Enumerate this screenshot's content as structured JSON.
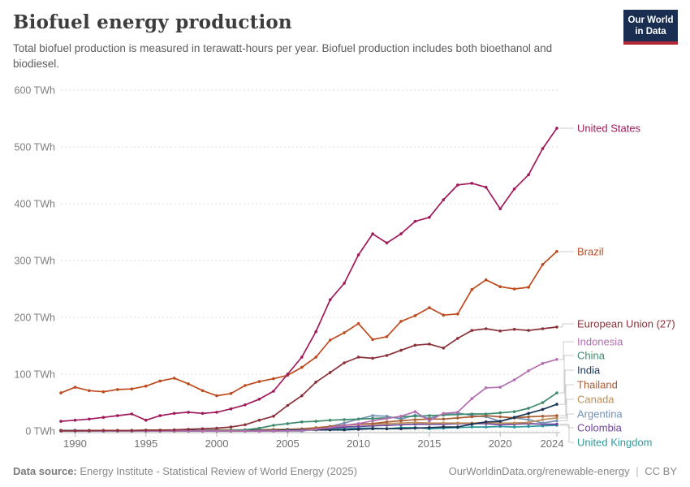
{
  "header": {
    "title": "Biofuel energy production",
    "subtitle": "Total biofuel production is measured in terawatt-hours per year. Biofuel production includes both bioethanol and biodiesel.",
    "logo": {
      "line1": "Our World",
      "line2": "in Data",
      "bg_color": "#1a2e51",
      "accent_color": "#b22735"
    }
  },
  "footer": {
    "datasource_label": "Data source:",
    "datasource": "Energy Institute - Statistical Review of World Energy (2025)",
    "link": "OurWorldinData.org/renewable-energy",
    "separator": "|",
    "license": "CC BY"
  },
  "chart_data": {
    "type": "line",
    "title": "Biofuel energy production",
    "unit": "TWh",
    "xlim": [
      1989,
      2024
    ],
    "ylim": [
      0,
      600
    ],
    "grid": "horizontal-dashed",
    "legend_position": "right-end-labels",
    "x": [
      1989,
      1990,
      1991,
      1992,
      1993,
      1994,
      1995,
      1996,
      1997,
      1998,
      1999,
      2000,
      2001,
      2002,
      2003,
      2004,
      2005,
      2006,
      2007,
      2008,
      2009,
      2010,
      2011,
      2012,
      2013,
      2014,
      2015,
      2016,
      2017,
      2018,
      2019,
      2020,
      2021,
      2022,
      2023,
      2024
    ],
    "x_ticks": [
      1990,
      1995,
      2000,
      2005,
      2010,
      2015,
      2020,
      2024
    ],
    "x_tick_labels": [
      "1990",
      "1995",
      "2000",
      "2005",
      "2010",
      "2015",
      "2020",
      "2024"
    ],
    "y_ticks": [
      0,
      100,
      200,
      300,
      400,
      500,
      600
    ],
    "y_tick_labels": [
      "0 TWh",
      "100 TWh",
      "200 TWh",
      "300 TWh",
      "400 TWh",
      "500 TWh",
      "600 TWh"
    ],
    "series": [
      {
        "name": "United States",
        "color": "#a0195b",
        "label_y": 68,
        "values": [
          17,
          19,
          21,
          24,
          27,
          30,
          19,
          27,
          31,
          33,
          31,
          33,
          39,
          46,
          56,
          70,
          100,
          130,
          175,
          231,
          260,
          310,
          347,
          331,
          347,
          369,
          376,
          407,
          433,
          436,
          429,
          391,
          426,
          451,
          497,
          533
        ]
      },
      {
        "name": "Brazil",
        "color": "#bd4a1f",
        "label_y": 220,
        "values": [
          67,
          77,
          71,
          69,
          73,
          74,
          79,
          88,
          93,
          83,
          71,
          62,
          66,
          80,
          87,
          92,
          98,
          112,
          130,
          160,
          173,
          189,
          161,
          166,
          193,
          203,
          217,
          204,
          206,
          249,
          266,
          254,
          250,
          253,
          293,
          316
        ]
      },
      {
        "name": "European Union (27)",
        "color": "#8a3039",
        "label_y": 309,
        "values": [
          0.5,
          0.5,
          0.7,
          1,
          1,
          1,
          1.5,
          1.5,
          2,
          3,
          4,
          5,
          7,
          11,
          19,
          26,
          45,
          62,
          86,
          103,
          120,
          130,
          128,
          133,
          142,
          151,
          153,
          146,
          163,
          177,
          180,
          176,
          179,
          177,
          180,
          183
        ]
      },
      {
        "name": "Indonesia",
        "color": "#b36fb0",
        "label_y": 331,
        "values": [
          0,
          0,
          0,
          0,
          0,
          0,
          0,
          0,
          0,
          0,
          0,
          0,
          0,
          0,
          0,
          0,
          0.4,
          1,
          3,
          6,
          10,
          13,
          18,
          22,
          26,
          34,
          18,
          31,
          33,
          57,
          76,
          77,
          90,
          106,
          119,
          126
        ]
      },
      {
        "name": "China",
        "color": "#3e8a6c",
        "label_y": 348,
        "values": [
          0,
          0,
          0,
          0,
          0,
          0,
          0,
          0,
          0,
          0,
          0,
          0.5,
          1,
          2,
          5,
          10,
          13,
          16,
          17,
          19,
          20,
          21,
          22,
          23,
          25,
          26,
          27,
          28,
          29,
          30,
          30,
          32,
          34,
          40,
          50,
          67
        ]
      },
      {
        "name": "India",
        "color": "#1a3455",
        "label_y": 366,
        "values": [
          1,
          1,
          1,
          1,
          1,
          1,
          1,
          1,
          1,
          1,
          1,
          1,
          1,
          1,
          1,
          1,
          2,
          2,
          2,
          2,
          2,
          3,
          4,
          4,
          4,
          5,
          6,
          7,
          7,
          12,
          16,
          17,
          24,
          31,
          38,
          47
        ]
      },
      {
        "name": "Thailand",
        "color": "#a85d34",
        "label_y": 384,
        "values": [
          0,
          0,
          0,
          0,
          0,
          0,
          0,
          0,
          0,
          0,
          0,
          0,
          0,
          0,
          0,
          1,
          2,
          3,
          5,
          8,
          10,
          12,
          13,
          16,
          18,
          20,
          21,
          21,
          23,
          25,
          27,
          25,
          23,
          25,
          26,
          27
        ]
      },
      {
        "name": "Canada",
        "color": "#bc8e5a",
        "label_y": 402,
        "values": [
          1,
          1,
          1,
          1,
          1,
          1,
          1,
          1,
          1,
          1,
          1,
          2,
          2,
          2,
          2,
          3,
          3,
          4,
          6,
          8,
          10,
          12,
          12,
          13,
          14,
          15,
          14,
          14,
          14,
          14,
          15,
          14,
          14,
          15,
          20,
          23
        ]
      },
      {
        "name": "Argentina",
        "color": "#7291b4",
        "label_y": 420,
        "values": [
          0,
          0,
          0,
          0,
          0,
          0,
          0,
          0,
          0,
          0,
          0,
          0,
          0,
          0,
          0,
          0,
          0,
          0,
          3,
          8,
          14,
          21,
          27,
          26,
          21,
          28,
          22,
          30,
          32,
          27,
          25,
          17,
          23,
          20,
          14,
          18
        ]
      },
      {
        "name": "Colombia",
        "color": "#70449b",
        "label_y": 437,
        "values": [
          0.3,
          0.3,
          0.3,
          0.3,
          0.3,
          0.3,
          0.3,
          0.3,
          0.3,
          0.3,
          0.3,
          0.3,
          0.3,
          0.3,
          0.3,
          0.3,
          0.3,
          2,
          3,
          5,
          7,
          8,
          9,
          10,
          11,
          12,
          12,
          12,
          13,
          13,
          13,
          11,
          12,
          13,
          12,
          12
        ]
      },
      {
        "name": "United Kingdom",
        "color": "#2e999c",
        "label_y": 455,
        "values": [
          0.2,
          0.2,
          0.2,
          0.2,
          0.2,
          0.2,
          0.2,
          0.2,
          0.2,
          0.2,
          0.2,
          0.2,
          0.2,
          0.2,
          0.2,
          1,
          1,
          2,
          3,
          4,
          4,
          5,
          5,
          4,
          6,
          6,
          4,
          5,
          6,
          7,
          7,
          8,
          7,
          8,
          9,
          10
        ]
      }
    ]
  }
}
